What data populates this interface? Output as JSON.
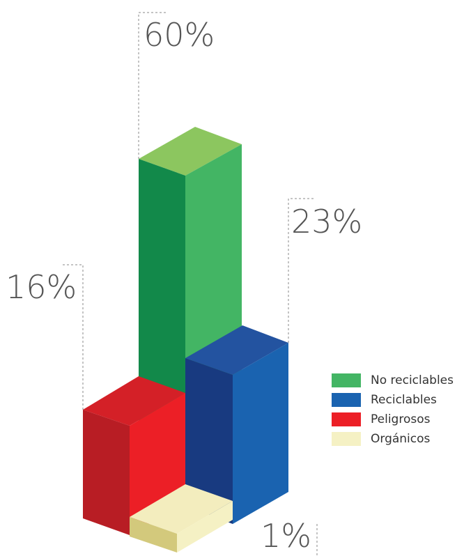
{
  "chart_data": {
    "type": "bar",
    "categories": [
      "No reciclables",
      "Reciclables",
      "Peligrosos",
      "Orgánicos"
    ],
    "values": [
      60,
      23,
      16,
      1
    ],
    "value_labels": [
      "60%",
      "23%",
      "16%",
      "1%"
    ],
    "colors": {
      "No reciclables": {
        "top": "#8cc65f",
        "left": "#12894a",
        "right": "#43b564"
      },
      "Reciclables": {
        "top": "#2353a0",
        "left": "#183a80",
        "right": "#1a63b0"
      },
      "Peligrosos": {
        "top": "#d42027",
        "left": "#b81d24",
        "right": "#ec1f26"
      },
      "Orgánicos": {
        "top": "#f3edbe",
        "left": "#d3c97c",
        "right": "#f5f1c4"
      }
    },
    "legend": {
      "placement": "right",
      "items": [
        {
          "label": "No reciclables",
          "color": "#43b564"
        },
        {
          "label": "Reciclables",
          "color": "#1a63b0"
        },
        {
          "label": "Peligrosos",
          "color": "#ec1f26"
        },
        {
          "label": "Orgánicos",
          "color": "#f5f1c4"
        }
      ]
    }
  }
}
